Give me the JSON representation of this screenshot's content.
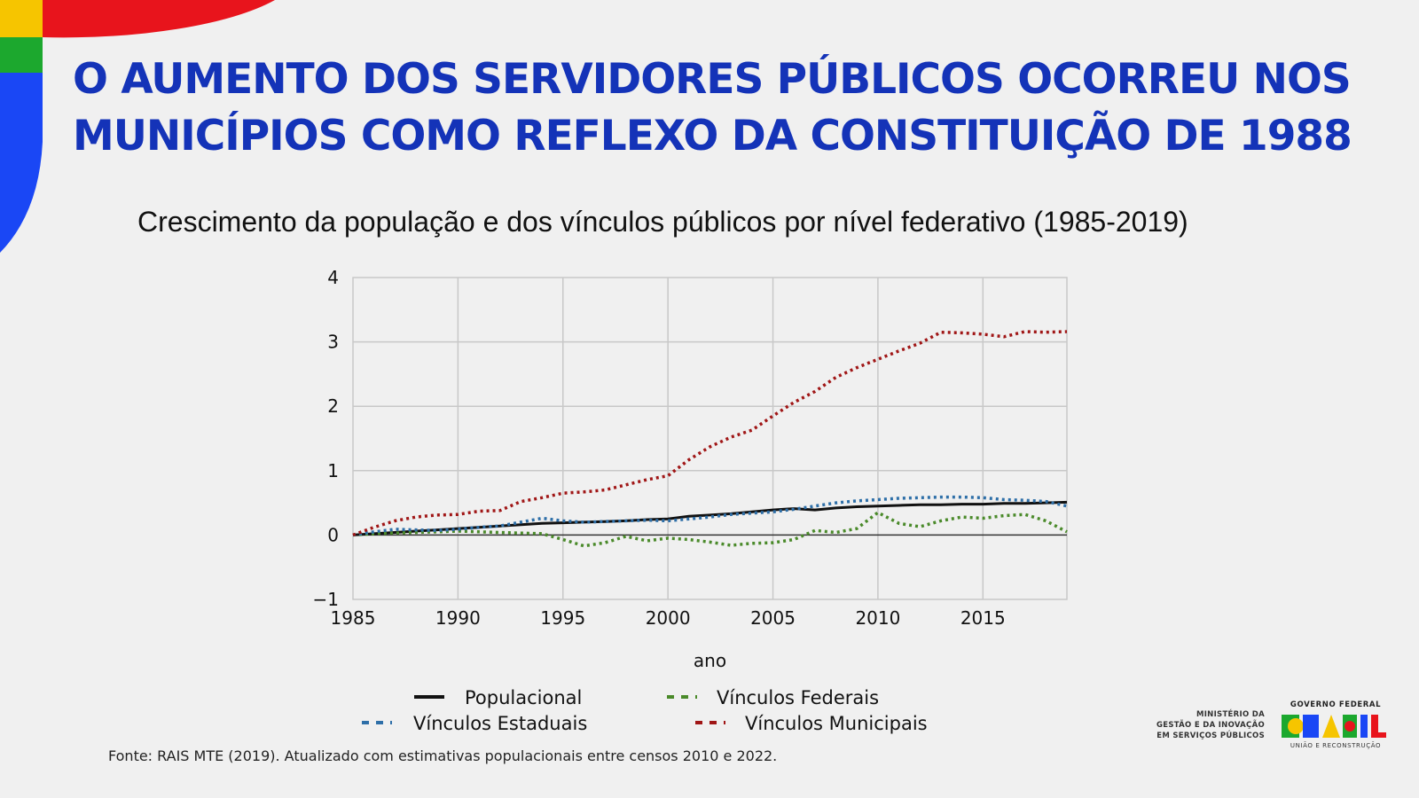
{
  "slide": {
    "title_line1": "O AUMENTO DOS SERVIDORES PÚBLICOS OCORREU NOS",
    "title_line2": "MUNICÍPIOS COMO  REFLEXO DA CONSTITUIÇÃO DE 1988",
    "source_note": "Fonte: RAIS MTE (2019). Atualizado com estimativas populacionais entre censos 2010 e 2022.",
    "ministry_line1": "MINISTÉRIO DA",
    "ministry_line2": "GESTÃO E DA INOVAÇÃO",
    "ministry_line3": "EM SERVIÇOS PÚBLICOS",
    "gov_top": "GOVERNO FEDERAL",
    "gov_logo_text": "BRASIL",
    "gov_bottom": "UNIÃO E RECONSTRUÇÃO",
    "accent_color": "#1433b8",
    "corner_colors": [
      "#e8141c",
      "#f6c500",
      "#1ca82e",
      "#1a47f5"
    ]
  },
  "chart_data": {
    "type": "line",
    "title": "Crescimento da população e dos vínculos públicos por nível federativo (1985-2019)",
    "xlabel": "ano",
    "ylabel": "",
    "xlim": [
      1985,
      2019
    ],
    "ylim": [
      -1,
      4
    ],
    "x_ticks": [
      "1985",
      "1990",
      "1995",
      "2000",
      "2005",
      "2010",
      "2015"
    ],
    "y_ticks": [
      "4",
      "3",
      "2",
      "1",
      "0",
      "−1"
    ],
    "grid": true,
    "legend_position": "bottom",
    "x": [
      1985,
      1986,
      1987,
      1988,
      1989,
      1990,
      1991,
      1992,
      1993,
      1994,
      1995,
      1996,
      1997,
      1998,
      1999,
      2000,
      2001,
      2002,
      2003,
      2004,
      2005,
      2006,
      2007,
      2008,
      2009,
      2010,
      2011,
      2012,
      2013,
      2014,
      2015,
      2016,
      2017,
      2018,
      2019
    ],
    "series": [
      {
        "name": "Populacional",
        "color": "#111111",
        "dash": "solid",
        "values": [
          0.0,
          0.02,
          0.04,
          0.06,
          0.08,
          0.1,
          0.12,
          0.14,
          0.16,
          0.18,
          0.19,
          0.2,
          0.21,
          0.22,
          0.24,
          0.25,
          0.29,
          0.31,
          0.33,
          0.36,
          0.39,
          0.41,
          0.39,
          0.42,
          0.44,
          0.45,
          0.46,
          0.47,
          0.47,
          0.48,
          0.48,
          0.49,
          0.49,
          0.5,
          0.51
        ]
      },
      {
        "name": "Vínculos Federais",
        "color": "#4a8a2a",
        "dash": "dotted",
        "values": [
          0.0,
          0.02,
          0.03,
          0.04,
          0.05,
          0.06,
          0.05,
          0.04,
          0.03,
          0.02,
          -0.07,
          -0.17,
          -0.12,
          -0.02,
          -0.09,
          -0.05,
          -0.07,
          -0.11,
          -0.16,
          -0.13,
          -0.12,
          -0.07,
          0.07,
          0.04,
          0.1,
          0.35,
          0.18,
          0.13,
          0.22,
          0.28,
          0.26,
          0.3,
          0.32,
          0.22,
          0.05
        ]
      },
      {
        "name": "Vínculos Estaduais",
        "color": "#2e6fa8",
        "dash": "dotted",
        "values": [
          0.0,
          0.05,
          0.09,
          0.08,
          0.07,
          0.09,
          0.12,
          0.14,
          0.2,
          0.26,
          0.22,
          0.2,
          0.21,
          0.22,
          0.23,
          0.22,
          0.25,
          0.28,
          0.32,
          0.34,
          0.36,
          0.4,
          0.45,
          0.5,
          0.53,
          0.55,
          0.57,
          0.58,
          0.59,
          0.59,
          0.58,
          0.55,
          0.54,
          0.52,
          0.45
        ]
      },
      {
        "name": "Vínculos Municipais",
        "color": "#a01616",
        "dash": "dotted",
        "values": [
          0.0,
          0.12,
          0.22,
          0.28,
          0.31,
          0.32,
          0.37,
          0.38,
          0.52,
          0.58,
          0.65,
          0.67,
          0.7,
          0.78,
          0.86,
          0.92,
          1.17,
          1.37,
          1.52,
          1.63,
          1.85,
          2.06,
          2.23,
          2.45,
          2.6,
          2.73,
          2.86,
          2.98,
          3.15,
          3.14,
          3.12,
          3.08,
          3.16,
          3.15,
          3.16
        ]
      }
    ]
  }
}
